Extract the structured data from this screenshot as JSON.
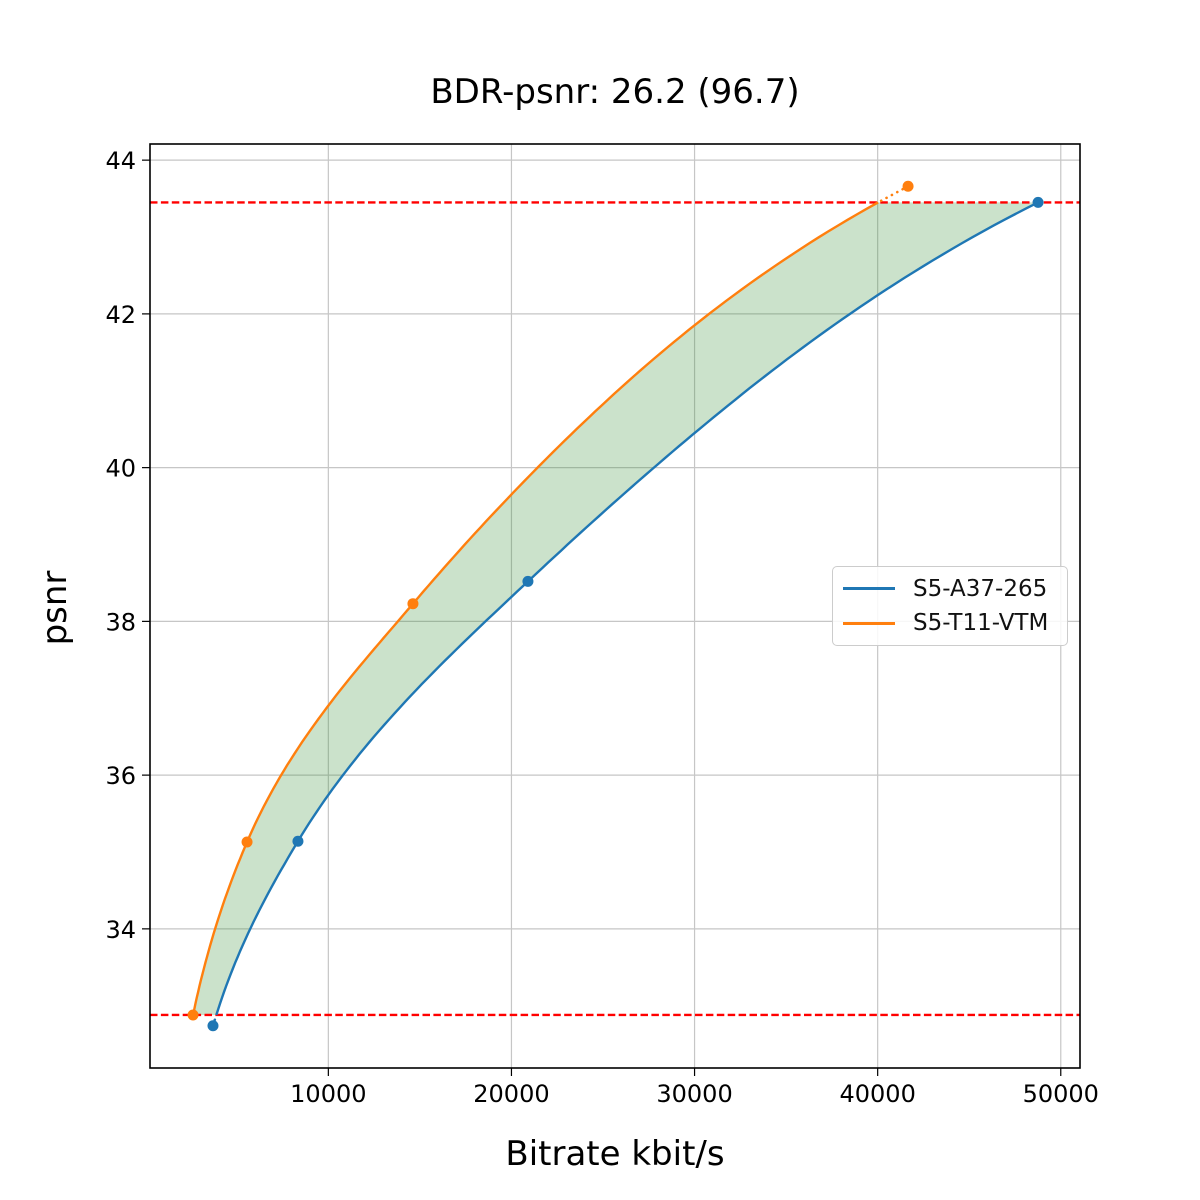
{
  "figure": {
    "background": "#ffffff"
  },
  "chart_data": {
    "type": "line",
    "title": "BDR-psnr: 26.2 (96.7)",
    "xlabel": "Bitrate kbit/s",
    "ylabel": "psnr",
    "xlim": [
      260,
      51050
    ],
    "ylim": [
      32.19,
      44.21
    ],
    "xticks": [
      10000,
      20000,
      30000,
      40000,
      50000
    ],
    "yticks": [
      34,
      36,
      38,
      40,
      42,
      44
    ],
    "grid": true,
    "grid_color": "#c6c6c6",
    "series": [
      {
        "name": "S5-A37-265",
        "color": "#1f77b4",
        "points": [
          [
            3700,
            32.74
          ],
          [
            8340,
            35.14
          ],
          [
            20900,
            38.52
          ],
          [
            48760,
            43.45
          ]
        ]
      },
      {
        "name": "S5-T11-VTM",
        "color": "#ff7f0e",
        "points": [
          [
            2610,
            32.88
          ],
          [
            5560,
            35.13
          ],
          [
            14620,
            38.23
          ],
          [
            41660,
            43.66
          ]
        ]
      }
    ],
    "overlap_lines": {
      "lower": 32.88,
      "upper": 43.45,
      "color": "#ff0000",
      "style": "dashed"
    },
    "band": {
      "color": "#2e8b2e",
      "opacity": 0.25
    },
    "legend": {
      "position": "center-right"
    }
  }
}
